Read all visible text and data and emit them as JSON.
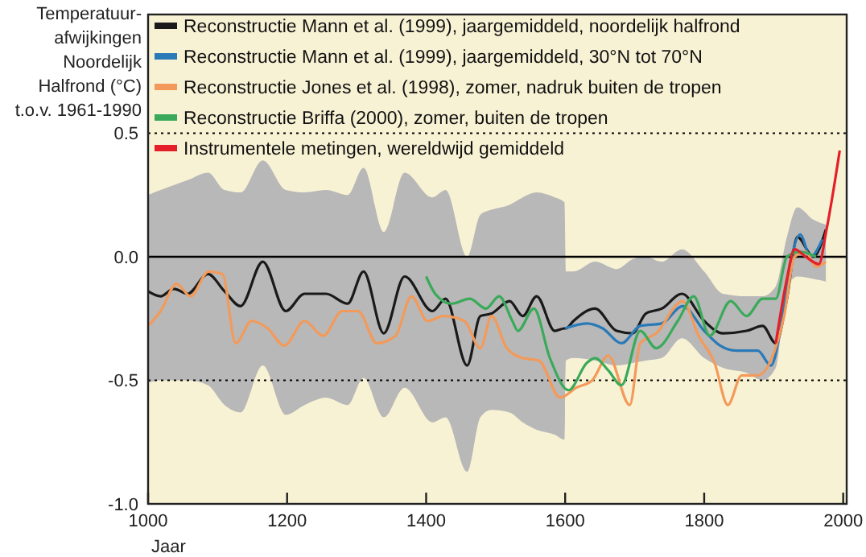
{
  "chart_data": {
    "type": "line",
    "xlabel": "Jaar",
    "ylabel": "Temperatuur-\nafwijkingen\nNoordelijk\nHalfrond (°C)\nt.o.v. 1961-1990",
    "xlim": [
      1000,
      2005
    ],
    "ylim": [
      -1.0,
      0.98
    ],
    "xticks": [
      1000,
      1200,
      1400,
      1600,
      1800,
      2000
    ],
    "yticks": [
      0.5,
      {
        "value": 0,
        "label": "0.0"
      },
      -0.5,
      {
        "value": -1,
        "label": "-1.0"
      }
    ],
    "legend": "top left",
    "ref_lines": [
      {
        "axis": "y",
        "value": 0.5,
        "line_style": "dotted",
        "color": "#000000"
      },
      {
        "axis": "y",
        "value": 0,
        "line_style": "solid",
        "color": "#000000"
      },
      {
        "axis": "y",
        "value": -0.5,
        "line_style": "dotted",
        "color": "#000000"
      }
    ],
    "series": [
      {
        "name": "Reconstructie Mann et al. (1999), jaargemiddeld, noordelijk halfrond",
        "color": "#1a1a1a",
        "x": [
          1000,
          1018,
          1037,
          1057,
          1086,
          1110,
          1133,
          1165,
          1198,
          1225,
          1256,
          1287,
          1310,
          1339,
          1369,
          1409,
          1428,
          1459,
          1478,
          1494,
          1520,
          1539,
          1559,
          1585,
          1599,
          1601,
          1612,
          1643,
          1674,
          1697,
          1716,
          1739,
          1768,
          1800,
          1827,
          1861,
          1884,
          1903,
          1919,
          1934,
          1957,
          1975
        ],
        "values": [
          -0.14,
          -0.16,
          -0.13,
          -0.15,
          -0.07,
          -0.14,
          -0.2,
          -0.02,
          -0.22,
          -0.15,
          -0.15,
          -0.19,
          -0.06,
          -0.31,
          -0.08,
          -0.22,
          -0.17,
          -0.44,
          -0.24,
          -0.23,
          -0.18,
          -0.24,
          -0.16,
          -0.3,
          -0.29,
          -0.29,
          -0.26,
          -0.21,
          -0.3,
          -0.31,
          -0.23,
          -0.21,
          -0.15,
          -0.26,
          -0.31,
          -0.3,
          -0.28,
          -0.35,
          -0.17,
          0.08,
          0.0,
          0.11
        ],
        "upper": [
          0.25,
          0.27,
          0.29,
          0.31,
          0.34,
          0.27,
          0.26,
          0.39,
          0.27,
          0.26,
          0.27,
          0.25,
          0.36,
          0.1,
          0.34,
          0.24,
          0.27,
          0.0,
          0.17,
          0.19,
          0.21,
          0.24,
          0.26,
          0.24,
          0.22,
          -0.06,
          -0.06,
          -0.02,
          -0.05,
          -0.01,
          0.0,
          -0.02,
          0.03,
          -0.06,
          -0.15,
          -0.16,
          -0.16,
          -0.12,
          0.08,
          0.2,
          0.15,
          0.13
        ],
        "lower": [
          -0.51,
          -0.5,
          -0.5,
          -0.5,
          -0.52,
          -0.6,
          -0.63,
          -0.44,
          -0.64,
          -0.6,
          -0.57,
          -0.6,
          -0.49,
          -0.65,
          -0.53,
          -0.67,
          -0.65,
          -0.87,
          -0.65,
          -0.62,
          -0.63,
          -0.67,
          -0.7,
          -0.72,
          -0.74,
          -0.42,
          -0.41,
          -0.42,
          -0.44,
          -0.43,
          -0.42,
          -0.41,
          -0.33,
          -0.41,
          -0.45,
          -0.47,
          -0.5,
          -0.45,
          -0.13,
          -0.08,
          -0.09,
          -0.1
        ]
      },
      {
        "name": "Reconstructie Mann et al. (1999), jaargemiddeld, 30°N tot 70°N",
        "color": "#2a7ab8",
        "x": [
          1600,
          1631,
          1654,
          1681,
          1708,
          1739,
          1769,
          1800,
          1823,
          1846,
          1877,
          1896,
          1915,
          1926,
          1938,
          1953,
          1970
        ],
        "values": [
          -0.29,
          -0.27,
          -0.29,
          -0.35,
          -0.28,
          -0.27,
          -0.2,
          -0.3,
          -0.36,
          -0.38,
          -0.38,
          -0.44,
          -0.2,
          0.0,
          0.09,
          0.0,
          0.07
        ]
      },
      {
        "name": "Reconstructie Jones et al. (1998), zomer, nadruk buiten de tropen",
        "color": "#f39a5a",
        "x": [
          1000,
          1018,
          1041,
          1061,
          1087,
          1107,
          1126,
          1149,
          1172,
          1196,
          1225,
          1252,
          1279,
          1302,
          1329,
          1356,
          1379,
          1402,
          1425,
          1455,
          1478,
          1494,
          1516,
          1539,
          1562,
          1593,
          1616,
          1639,
          1662,
          1693,
          1708,
          1731,
          1769,
          1792,
          1815,
          1834,
          1854,
          1877,
          1900,
          1915,
          1930,
          1946,
          1961,
          1975
        ],
        "values": [
          -0.28,
          -0.22,
          -0.11,
          -0.16,
          -0.06,
          -0.07,
          -0.35,
          -0.26,
          -0.29,
          -0.36,
          -0.26,
          -0.32,
          -0.22,
          -0.22,
          -0.35,
          -0.32,
          -0.16,
          -0.26,
          -0.24,
          -0.26,
          -0.37,
          -0.24,
          -0.37,
          -0.41,
          -0.42,
          -0.57,
          -0.53,
          -0.5,
          -0.4,
          -0.6,
          -0.35,
          -0.31,
          -0.18,
          -0.32,
          -0.43,
          -0.6,
          -0.48,
          -0.48,
          -0.39,
          -0.24,
          0.0,
          0.02,
          -0.04,
          -0.02
        ]
      },
      {
        "name": "Reconstructie Briffa (2000), zomer, buiten de tropen",
        "color": "#3aaa5a",
        "x": [
          1400,
          1413,
          1436,
          1463,
          1486,
          1505,
          1524,
          1532,
          1555,
          1578,
          1605,
          1631,
          1643,
          1662,
          1681,
          1708,
          1731,
          1762,
          1785,
          1808,
          1838,
          1861,
          1884,
          1903,
          1919,
          1938,
          1961
        ],
        "values": [
          -0.08,
          -0.15,
          -0.19,
          -0.17,
          -0.21,
          -0.16,
          -0.26,
          -0.3,
          -0.21,
          -0.41,
          -0.54,
          -0.43,
          -0.41,
          -0.46,
          -0.52,
          -0.3,
          -0.37,
          -0.26,
          -0.16,
          -0.32,
          -0.18,
          -0.24,
          -0.17,
          -0.17,
          0.0,
          0.02,
          0.0
        ]
      },
      {
        "name": "Instrumentele metingen, wereldwijd gemiddeld",
        "color": "#e3202a",
        "x": [
          1903,
          1919,
          1930,
          1946,
          1965,
          1976,
          1995
        ],
        "values": [
          -0.35,
          -0.09,
          0.03,
          0.0,
          -0.03,
          0.11,
          0.43
        ]
      }
    ]
  }
}
